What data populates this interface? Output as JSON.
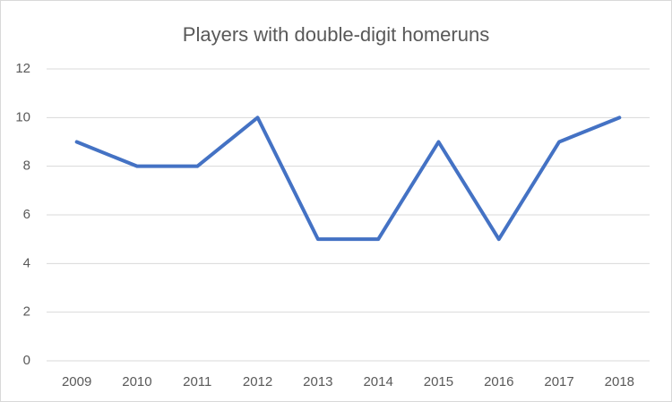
{
  "chart_data": {
    "type": "line",
    "title": "Players with double-digit homeruns",
    "categories": [
      "2009",
      "2010",
      "2011",
      "2012",
      "2013",
      "2014",
      "2015",
      "2016",
      "2017",
      "2018"
    ],
    "values": [
      9,
      8,
      8,
      10,
      5,
      5,
      9,
      5,
      9,
      10
    ],
    "color": "#4472c4",
    "ylim": [
      0,
      12
    ],
    "yticks": [
      0,
      2,
      4,
      6,
      8,
      10,
      12
    ],
    "grid": true
  }
}
